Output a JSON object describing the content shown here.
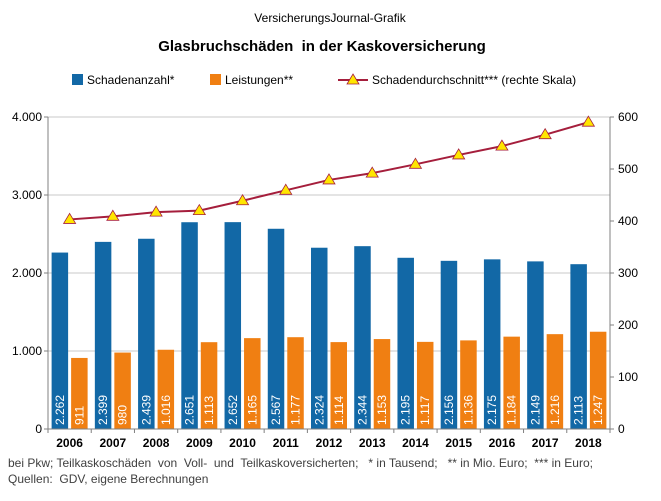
{
  "header": {
    "source_label": "VersicherungsJournal-Grafik",
    "title": "Glasbruchschäden  in der Kaskoversicherung"
  },
  "legend": {
    "items": [
      {
        "label": "Schadenanzahl*",
        "color": "#1268A6",
        "marker": "square"
      },
      {
        "label": "Leistungen**",
        "color": "#F07F12",
        "marker": "square"
      },
      {
        "label": "Schadendurchschnitt*** (rechte Skala)",
        "color": "#A51E3C",
        "marker": "triangle-line"
      }
    ]
  },
  "footer": {
    "line1": "bei Pkw; Teilkaskoschäden  von  Voll-  und  Teilkaskoversicherten;   * in Tausend;   ** in Mio. Euro;  *** in Euro;",
    "line2": "Quellen:  GDV, eigene Berechnungen"
  },
  "chart_data": {
    "type": "bar",
    "title": "Glasbruchschäden  in der Kaskoversicherung",
    "categories": [
      "2006",
      "2007",
      "2008",
      "2009",
      "2010",
      "2011",
      "2012",
      "2013",
      "2014",
      "2015",
      "2016",
      "2017",
      "2018"
    ],
    "series": [
      {
        "name": "Schadenanzahl*",
        "type": "bar",
        "axis": "left",
        "color": "#1268A6",
        "values": [
          2262,
          2399,
          2439,
          2651,
          2652,
          2567,
          2324,
          2344,
          2195,
          2156,
          2175,
          2149,
          2113
        ],
        "data_labels": [
          "2.262",
          "2.399",
          "2.439",
          "2.651",
          "2.652",
          "2.567",
          "2.324",
          "2.344",
          "2.195",
          "2.156",
          "2.175",
          "2.149",
          "2.113"
        ]
      },
      {
        "name": "Leistungen**",
        "type": "bar",
        "axis": "left",
        "color": "#F07F12",
        "values": [
          911,
          980,
          1016,
          1113,
          1165,
          1177,
          1114,
          1153,
          1117,
          1136,
          1184,
          1216,
          1247
        ],
        "data_labels": [
          "911",
          "980",
          "1.016",
          "1.113",
          "1.165",
          "1.177",
          "1.114",
          "1.153",
          "1.117",
          "1.136",
          "1.184",
          "1.216",
          "1.247"
        ]
      },
      {
        "name": "Schadendurchschnitt*** (rechte Skala)",
        "type": "line",
        "axis": "right",
        "color": "#A51E3C",
        "marker_color": "#FFE600",
        "values": [
          403,
          409,
          417,
          420,
          439,
          459,
          479,
          492,
          509,
          527,
          544,
          566,
          590
        ]
      }
    ],
    "y_left": {
      "min": 0,
      "max": 4000,
      "ticks": [
        0,
        1000,
        2000,
        3000,
        4000
      ],
      "tick_labels": [
        "0",
        "1.000",
        "2.000",
        "3.000",
        "4.000"
      ]
    },
    "y_right": {
      "min": 0,
      "max": 600,
      "ticks": [
        0,
        100,
        200,
        300,
        400,
        500,
        600
      ],
      "tick_labels": [
        "0",
        "100",
        "200",
        "300",
        "400",
        "500",
        "600"
      ]
    },
    "grid": true,
    "legend_position": "top"
  }
}
